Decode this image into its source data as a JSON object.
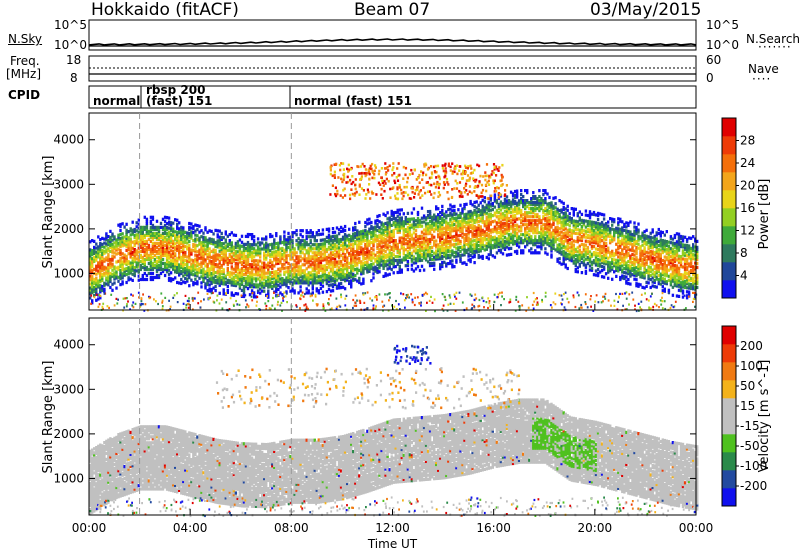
{
  "header": {
    "title": "Hokkaido (fitACF)",
    "beam": "Beam 07",
    "date": "03/May/2015"
  },
  "summary_panels": {
    "noise": {
      "left_label": "N.Sky",
      "right_label": "N.Search",
      "left_ticks": [
        "10^5",
        "10^0"
      ],
      "right_ticks": [
        "10^5",
        "10^0"
      ]
    },
    "freq": {
      "left_label_1": "Freq.",
      "left_label_2": "[MHz]",
      "left_ticks": [
        "18",
        "8"
      ],
      "right_label": "Nave",
      "right_ticks": [
        "60",
        "0"
      ]
    },
    "cpid": {
      "label": "CPID",
      "modes": [
        "normal",
        "rbsp 200",
        "(fast) 151",
        "normal (fast) 151"
      ]
    }
  },
  "chart_data": [
    {
      "type": "heatmap",
      "quantity": "Power",
      "xlabel": "",
      "ylabel": "Slant Range [km]",
      "colorbar_label": "Power [dB]",
      "colorbar_ticks": [
        "28",
        "24",
        "20",
        "16",
        "12",
        "8",
        "4"
      ],
      "xlim_hours": [
        0,
        24
      ],
      "ylim": [
        180,
        4600
      ],
      "yticks": [
        1000,
        2000,
        3000,
        4000
      ],
      "colors": [
        "#1010ee",
        "#20479a",
        "#2e7a5e",
        "#3faa3a",
        "#93cf22",
        "#e8d419",
        "#f3a51b",
        "#f46f0a",
        "#ee3b07",
        "#e00000"
      ],
      "features": [
        {
          "desc": "main red band",
          "path_hours": [
            0,
            1,
            2,
            3,
            4,
            5,
            6,
            7,
            8,
            9,
            10,
            11,
            12,
            13,
            14,
            15,
            16,
            17,
            18,
            19,
            20,
            21,
            22,
            23,
            24
          ],
          "path_km": [
            1050,
            1400,
            1600,
            1600,
            1450,
            1300,
            1220,
            1200,
            1300,
            1300,
            1380,
            1550,
            1750,
            1800,
            1850,
            1950,
            2100,
            2200,
            2200,
            1800,
            1700,
            1550,
            1400,
            1250,
            1150
          ]
        },
        {
          "desc": "upper echo cluster",
          "hours": [
            9.5,
            16.5
          ],
          "km": [
            2700,
            3500
          ]
        },
        {
          "desc": "near range clutter",
          "hours": [
            0,
            24
          ],
          "km": [
            180,
            600
          ]
        }
      ]
    },
    {
      "type": "heatmap",
      "quantity": "Velocity",
      "xlabel": "Time UT",
      "ylabel": "Slant Range [km]",
      "colorbar_label": "Velocity [m s^-1]",
      "colorbar_ticks": [
        "200",
        "100",
        "50",
        "15",
        "-15",
        "-50",
        "-100",
        "-200"
      ],
      "xlim_hours": [
        0,
        24
      ],
      "xticks": [
        "00:00",
        "04:00",
        "08:00",
        "12:00",
        "16:00",
        "20:00",
        "00:00"
      ],
      "ylim": [
        180,
        4600
      ],
      "yticks": [
        1000,
        2000,
        3000,
        4000
      ],
      "colors": [
        "#1010ee",
        "#224aa0",
        "#2a8a4a",
        "#4fc11f",
        "#c0c0c0",
        "#c0c0c0",
        "#f3b21b",
        "#f07a12",
        "#ee3b07",
        "#e00000"
      ],
      "features": [
        {
          "desc": "ground scatter band (gray)",
          "hours": [
            0,
            24
          ],
          "km": [
            800,
            2300
          ]
        },
        {
          "desc": "green negative-drift streak",
          "hours": [
            17.5,
            20
          ],
          "km": [
            1300,
            2000
          ]
        },
        {
          "desc": "blue patch",
          "hours": [
            12,
            13.5
          ],
          "km": [
            3600,
            4000
          ]
        }
      ]
    }
  ],
  "theme": {
    "dashed_marks_hours": [
      2,
      8
    ]
  }
}
